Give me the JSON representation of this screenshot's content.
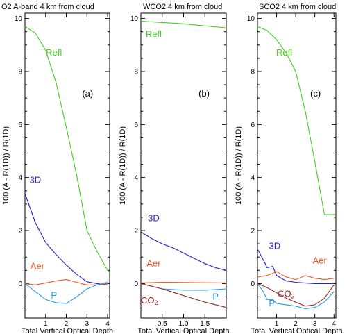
{
  "chart_data": [
    {
      "type": "line",
      "title": "O2 A-band 4 km from cloud",
      "xlabel": "Total Vertical Optical Depth",
      "ylabel": "100 (A - R(1D)) / R(1D)",
      "xlim": [
        0,
        4.1
      ],
      "ylim": [
        -1.3,
        10.2
      ],
      "xticks": [
        1,
        2,
        3,
        4
      ],
      "xtick_labels": [
        "1",
        "2",
        "3",
        "4"
      ],
      "yticks": [
        0,
        2,
        4,
        6,
        8,
        10
      ],
      "ytick_labels": [
        "0",
        "2",
        "4",
        "6",
        "8",
        "10"
      ],
      "panel_label": "(a)",
      "series": [
        {
          "name": "Refl",
          "color": "#44cc22",
          "label_at": [
            1.4,
            8.6
          ],
          "x": [
            0,
            0.5,
            1,
            1.5,
            2,
            2.5,
            3,
            3.5,
            4,
            4.1
          ],
          "y": [
            9.7,
            9.45,
            8.8,
            7.6,
            5.9,
            4.1,
            2.0,
            1.2,
            0.5,
            0.4
          ]
        },
        {
          "name": "3D",
          "color": "#2222cc",
          "label_at": [
            0.5,
            3.8
          ],
          "x": [
            0,
            0.5,
            1,
            1.5,
            2,
            2.5,
            3,
            3.5,
            4
          ],
          "y": [
            3.4,
            2.3,
            1.55,
            1.1,
            0.7,
            0.35,
            0.07,
            0.0,
            -0.05
          ]
        },
        {
          "name": "Aer",
          "color": "#ee5522",
          "label_at": [
            0.6,
            0.55
          ],
          "x": [
            0,
            0.5,
            1,
            1.5,
            2,
            2.5,
            3,
            3.5,
            4
          ],
          "y": [
            0.0,
            -0.05,
            0.02,
            0.1,
            0.15,
            0.05,
            -0.05,
            -0.05,
            0.0
          ]
        },
        {
          "name": "P",
          "color": "#2299ee",
          "label_at": [
            1.4,
            -0.55
          ],
          "x": [
            0,
            0.5,
            1,
            1.5,
            2,
            2.5,
            3,
            3.5,
            4
          ],
          "y": [
            0.0,
            -0.3,
            -0.6,
            -0.72,
            -0.75,
            -0.5,
            -0.2,
            -0.05,
            0.05
          ]
        }
      ]
    },
    {
      "type": "line",
      "title": "WCO2 4 km from cloud",
      "xlabel": "Total Vertical Optical Depth",
      "ylabel": "100 (A - R(1D)) / R(1D)",
      "xlim": [
        0,
        2.0
      ],
      "ylim": [
        -1.3,
        10.2
      ],
      "xticks": [
        0.5,
        1.0,
        1.5
      ],
      "xtick_labels": [
        "0.5",
        "1.0",
        "1.5"
      ],
      "yticks": [
        0,
        2,
        4,
        6,
        8,
        10
      ],
      "ytick_labels": [
        "0",
        "2",
        "4",
        "6",
        "8",
        "10"
      ],
      "panel_label": "(b)",
      "series": [
        {
          "name": "Refl",
          "color": "#44cc22",
          "label_at": [
            0.3,
            9.3
          ],
          "x": [
            0,
            0.5,
            1,
            1.5,
            2.0
          ],
          "y": [
            9.9,
            9.85,
            9.8,
            9.72,
            9.65
          ]
        },
        {
          "name": "3D",
          "color": "#2222cc",
          "label_at": [
            0.3,
            2.35
          ],
          "x": [
            0,
            0.25,
            0.5,
            0.75,
            1.0,
            1.25,
            1.5,
            1.75,
            2.0
          ],
          "y": [
            1.95,
            1.7,
            1.5,
            1.35,
            1.15,
            0.95,
            0.75,
            0.6,
            0.5
          ]
        },
        {
          "name": "Aer",
          "color": "#ee5522",
          "label_at": [
            0.3,
            0.65
          ],
          "x": [
            0,
            0.5,
            1,
            1.5,
            2.0
          ],
          "y": [
            0.02,
            0.05,
            0.04,
            0.03,
            0.02
          ]
        },
        {
          "name": "P",
          "color": "#2299ee",
          "label_at": [
            1.75,
            -0.6
          ],
          "x": [
            0,
            0.5,
            1,
            1.5,
            2.0
          ],
          "y": [
            0.0,
            -0.2,
            -0.25,
            -0.25,
            -0.2
          ]
        },
        {
          "name": "CO",
          "sub": "2",
          "color": "#992222",
          "label_at": [
            0.2,
            -0.75
          ],
          "x": [
            0,
            0.5,
            1,
            1.5,
            2.0
          ],
          "y": [
            0.0,
            -0.2,
            -0.45,
            -0.7,
            -0.9
          ]
        }
      ]
    },
    {
      "type": "line",
      "title": "SCO2 4 km from cloud",
      "xlabel": "Total Vertical Optical Depth",
      "ylabel": "100 (A - R(1D)) / R(1D)",
      "xlim": [
        0,
        4.1
      ],
      "ylim": [
        -1.3,
        10.2
      ],
      "xticks": [
        1,
        2,
        3,
        4
      ],
      "xtick_labels": [
        "1",
        "2",
        "3",
        "4"
      ],
      "yticks": [
        0,
        2,
        4,
        6,
        8,
        10
      ],
      "ytick_labels": [
        "0",
        "2",
        "4",
        "6",
        "8",
        "10"
      ],
      "panel_label": "(c)",
      "series": [
        {
          "name": "Refl",
          "color": "#44cc22",
          "label_at": [
            1.4,
            8.6
          ],
          "x": [
            0,
            0.5,
            1,
            1.5,
            2,
            2.5,
            3,
            3.5,
            4,
            4.1
          ],
          "y": [
            9.7,
            9.55,
            9.2,
            8.7,
            8.0,
            6.5,
            4.6,
            2.6,
            2.6,
            2.6
          ]
        },
        {
          "name": "3D",
          "color": "#2222cc",
          "label_at": [
            0.9,
            1.3
          ],
          "x": [
            0,
            0.3,
            0.5,
            0.8,
            1.0,
            1.5,
            2,
            2.5,
            3,
            3.5,
            4
          ],
          "y": [
            1.3,
            0.9,
            0.6,
            0.65,
            0.3,
            0.1,
            0.05,
            0.02,
            0.0,
            0.0,
            0.0
          ]
        },
        {
          "name": "Aer",
          "color": "#ee5522",
          "label_at": [
            3.25,
            0.75
          ],
          "x": [
            0,
            0.5,
            1,
            1.5,
            2,
            2.5,
            3,
            3.5,
            4
          ],
          "y": [
            0.25,
            0.3,
            0.45,
            0.25,
            0.15,
            0.3,
            0.2,
            0.15,
            0.2
          ]
        },
        {
          "name": "P",
          "color": "#2299ee",
          "label_at": [
            0.75,
            -0.85
          ],
          "x": [
            0,
            0.3,
            0.5,
            0.8,
            1.0,
            1.5,
            2,
            2.5,
            3,
            3.5,
            4
          ],
          "y": [
            0.0,
            -0.3,
            -0.6,
            -0.6,
            -0.75,
            -0.8,
            -0.85,
            -0.95,
            -0.9,
            -0.7,
            -0.3
          ]
        },
        {
          "name": "CO",
          "sub": "2",
          "color": "#992222",
          "label_at": [
            1.5,
            -0.5
          ],
          "x": [
            0,
            0.5,
            1,
            1.5,
            2,
            2.5,
            3,
            3.5,
            4
          ],
          "y": [
            0.0,
            -0.15,
            -0.35,
            -0.55,
            -0.7,
            -0.85,
            -0.8,
            -0.55,
            -0.05
          ]
        }
      ]
    }
  ]
}
